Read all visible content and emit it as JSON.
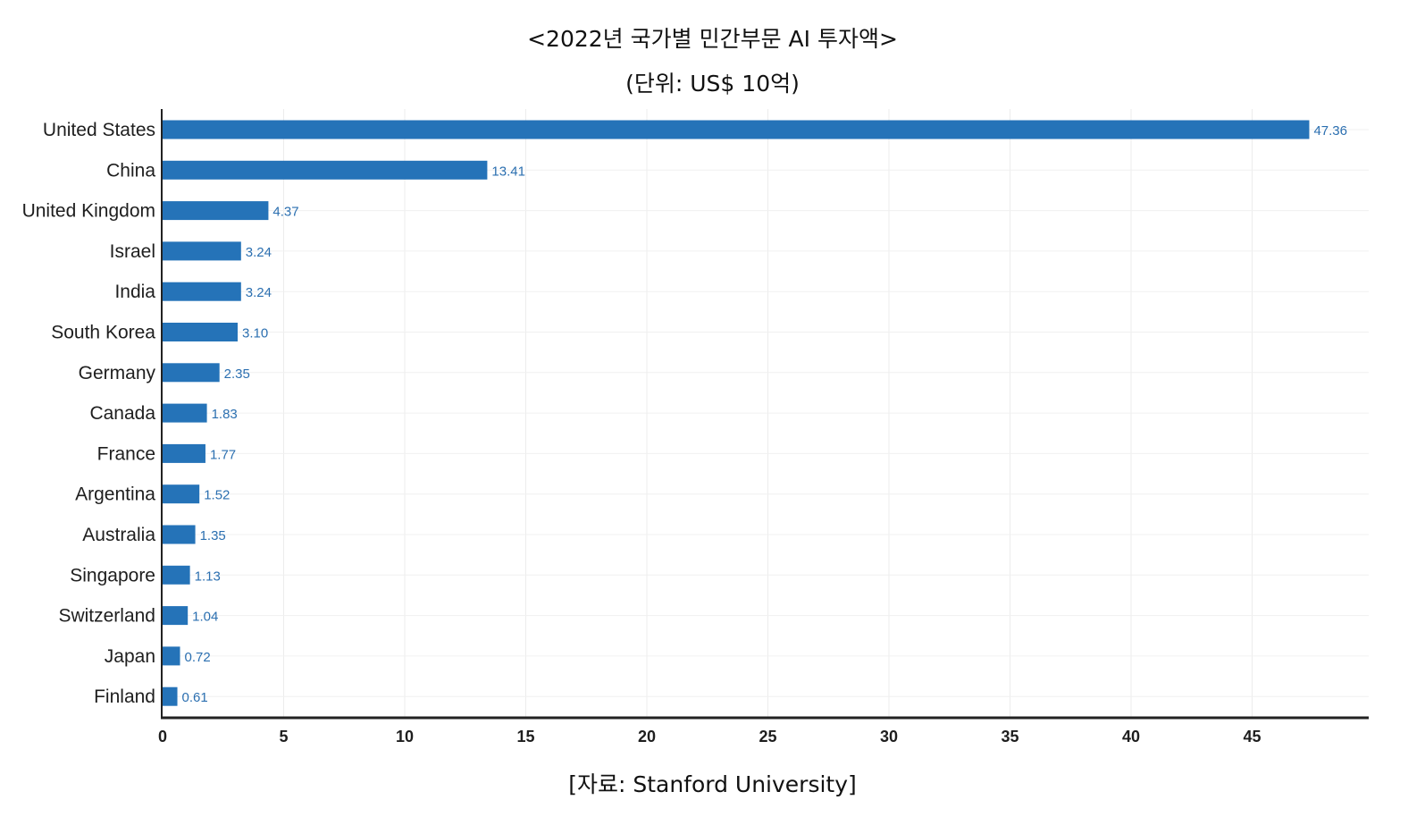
{
  "title": "<2022년 국가별 민간부문 AI 투자액>",
  "subtitle": "(단위: US$ 10억)",
  "source": "[자료: Stanford University]",
  "chart_data": {
    "type": "bar",
    "orientation": "horizontal",
    "title": "<2022년 국가별 민간부문 AI 투자액>",
    "subtitle": "(단위: US$ 10억)",
    "categories": [
      "United States",
      "China",
      "United Kingdom",
      "Israel",
      "India",
      "South Korea",
      "Germany",
      "Canada",
      "France",
      "Argentina",
      "Australia",
      "Singapore",
      "Switzerland",
      "Japan",
      "Finland"
    ],
    "values": [
      47.36,
      13.41,
      4.37,
      3.24,
      3.24,
      3.1,
      2.35,
      1.83,
      1.77,
      1.52,
      1.35,
      1.13,
      1.04,
      0.72,
      0.61
    ],
    "value_labels": [
      "47.36",
      "13.41",
      "4.37",
      "3.24",
      "3.24",
      "3.10",
      "2.35",
      "1.83",
      "1.77",
      "1.52",
      "1.35",
      "1.13",
      "1.04",
      "0.72",
      "0.61"
    ],
    "xticks": [
      "0",
      "5",
      "10",
      "15",
      "20",
      "25",
      "30",
      "35",
      "40",
      "45"
    ],
    "xlim": [
      0,
      50
    ],
    "xlabel": "",
    "ylabel": "",
    "grid": true,
    "legend": "none",
    "bar_color": "#2573b8",
    "label_color": "#2b6fb0"
  }
}
